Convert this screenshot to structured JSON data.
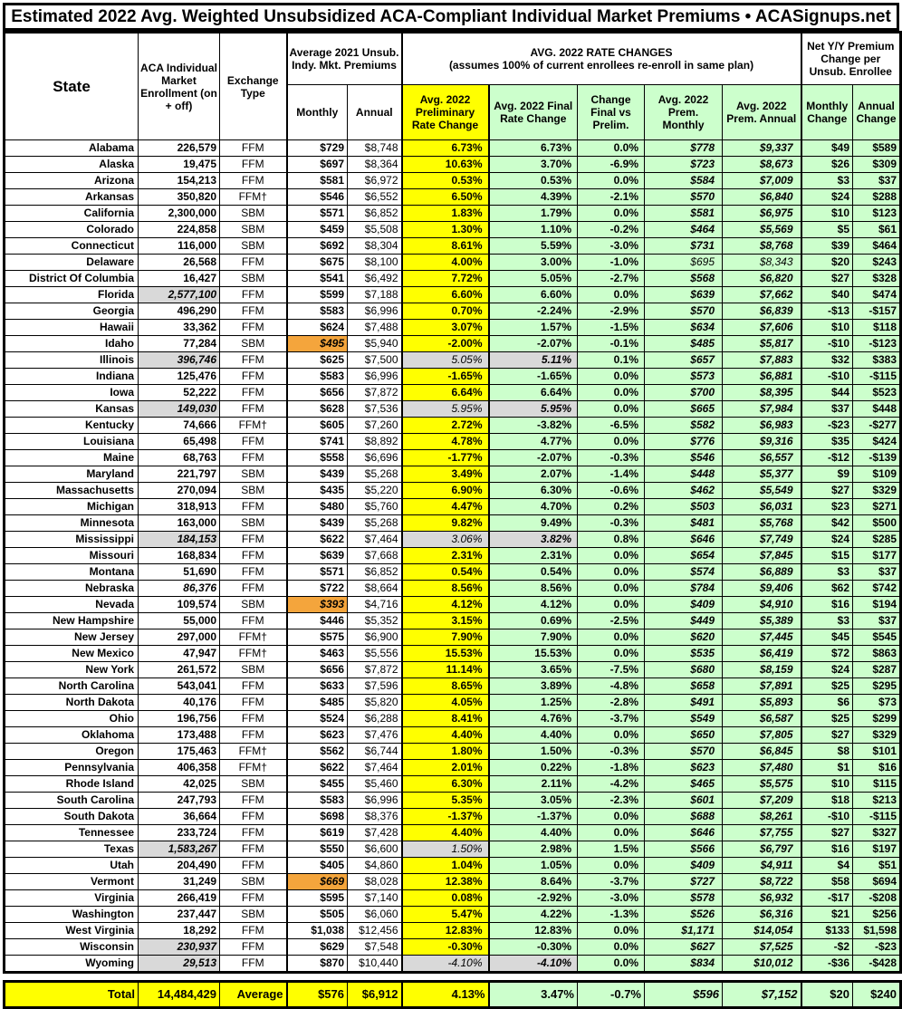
{
  "title": "Estimated 2022 Avg. Weighted Unsubsidized ACA-Compliant Individual Market Premiums • ACASignups.net",
  "colors": {
    "preliminary_highlight_yellow": "#FFFF00",
    "final_highlight_green": "#CCFFCC",
    "estimate_gray": "#D9D9D9",
    "lowest_premium_orange": "#F4A53C",
    "border_black": "#000000"
  },
  "header": {
    "state": "State",
    "enrollment": "ACA Individual Market Enrollment (on + off)",
    "exchange": "Exchange Type",
    "avg2021_group": "Average 2021 Unsub. Indy. Mkt. Premiums",
    "monthly": "Monthly",
    "annual": "Annual",
    "rate_group_line1": "AVG. 2022 RATE CHANGES",
    "rate_group_line2": "(assumes 100% of current enrollees re-enroll in same plan)",
    "prelim": "Avg. 2022 Preliminary Rate Change",
    "final": "Avg. 2022 Final Rate Change",
    "change_vs": "Change Final vs Prelim.",
    "prem_monthly": "Avg. 2022 Prem. Monthly",
    "prem_annual": "Avg. 2022 Prem. Annual",
    "net_group": "Net Y/Y Premium Change per Unsub. Enrollee",
    "monthly_change": "Monthly Change",
    "annual_change": "Annual Change"
  },
  "chart_data": {
    "type": "table",
    "title": "Estimated 2022 Avg. Weighted Unsubsidized ACA-Compliant Individual Market Premiums • ACASignups.net",
    "columns": [
      "State",
      "ACA Individual Market Enrollment (on + off)",
      "Exchange Type",
      "Average 2021 Unsub. Indy. Mkt. Premiums Monthly",
      "Average 2021 Unsub. Indy. Mkt. Premiums Annual",
      "Avg. 2022 Preliminary Rate Change",
      "Avg. 2022 Final Rate Change",
      "Change Final vs Prelim.",
      "Avg. 2022 Prem. Monthly",
      "Avg. 2022 Prem. Annual",
      "Monthly Change",
      "Annual Change"
    ],
    "flag_legend": {
      "enroll-est": "enrollment cell gray/italic (estimate)",
      "enroll-italic": "enrollment cell italic",
      "m21-orange": "2021 monthly premium cell orange/italic (lowest)",
      "prelim-est": "preliminary rate cell gray/italic (estimate)",
      "final-est": "final rate cell gray/italic (estimate)",
      "prem-light": "2022 premium cells non-bold italic"
    },
    "rows": [
      {
        "cells": [
          "Alabama",
          "226,579",
          "FFM",
          "$729",
          "$8,748",
          "6.73%",
          "6.73%",
          "0.0%",
          "$778",
          "$9,337",
          "$49",
          "$589"
        ],
        "flags": []
      },
      {
        "cells": [
          "Alaska",
          "19,475",
          "FFM",
          "$697",
          "$8,364",
          "10.63%",
          "3.70%",
          "-6.9%",
          "$723",
          "$8,673",
          "$26",
          "$309"
        ],
        "flags": []
      },
      {
        "cells": [
          "Arizona",
          "154,213",
          "FFM",
          "$581",
          "$6,972",
          "0.53%",
          "0.53%",
          "0.0%",
          "$584",
          "$7,009",
          "$3",
          "$37"
        ],
        "flags": []
      },
      {
        "cells": [
          "Arkansas",
          "350,820",
          "FFM†",
          "$546",
          "$6,552",
          "6.50%",
          "4.39%",
          "-2.1%",
          "$570",
          "$6,840",
          "$24",
          "$288"
        ],
        "flags": []
      },
      {
        "cells": [
          "California",
          "2,300,000",
          "SBM",
          "$571",
          "$6,852",
          "1.83%",
          "1.79%",
          "0.0%",
          "$581",
          "$6,975",
          "$10",
          "$123"
        ],
        "flags": []
      },
      {
        "cells": [
          "Colorado",
          "224,858",
          "SBM",
          "$459",
          "$5,508",
          "1.30%",
          "1.10%",
          "-0.2%",
          "$464",
          "$5,569",
          "$5",
          "$61"
        ],
        "flags": []
      },
      {
        "cells": [
          "Connecticut",
          "116,000",
          "SBM",
          "$692",
          "$8,304",
          "8.61%",
          "5.59%",
          "-3.0%",
          "$731",
          "$8,768",
          "$39",
          "$464"
        ],
        "flags": []
      },
      {
        "cells": [
          "Delaware",
          "26,568",
          "FFM",
          "$675",
          "$8,100",
          "4.00%",
          "3.00%",
          "-1.0%",
          "$695",
          "$8,343",
          "$20",
          "$243"
        ],
        "flags": [
          "prem-light"
        ]
      },
      {
        "cells": [
          "District Of Columbia",
          "16,427",
          "SBM",
          "$541",
          "$6,492",
          "7.72%",
          "5.05%",
          "-2.7%",
          "$568",
          "$6,820",
          "$27",
          "$328"
        ],
        "flags": []
      },
      {
        "cells": [
          "Florida",
          "2,577,100",
          "FFM",
          "$599",
          "$7,188",
          "6.60%",
          "6.60%",
          "0.0%",
          "$639",
          "$7,662",
          "$40",
          "$474"
        ],
        "flags": [
          "enroll-est"
        ]
      },
      {
        "cells": [
          "Georgia",
          "496,290",
          "FFM",
          "$583",
          "$6,996",
          "0.70%",
          "-2.24%",
          "-2.9%",
          "$570",
          "$6,839",
          "-$13",
          "-$157"
        ],
        "flags": []
      },
      {
        "cells": [
          "Hawaii",
          "33,362",
          "FFM",
          "$624",
          "$7,488",
          "3.07%",
          "1.57%",
          "-1.5%",
          "$634",
          "$7,606",
          "$10",
          "$118"
        ],
        "flags": []
      },
      {
        "cells": [
          "Idaho",
          "77,284",
          "SBM",
          "$495",
          "$5,940",
          "-2.00%",
          "-2.07%",
          "-0.1%",
          "$485",
          "$5,817",
          "-$10",
          "-$123"
        ],
        "flags": [
          "m21-orange"
        ]
      },
      {
        "cells": [
          "Illinois",
          "396,746",
          "FFM",
          "$625",
          "$7,500",
          "5.05%",
          "5.11%",
          "0.1%",
          "$657",
          "$7,883",
          "$32",
          "$383"
        ],
        "flags": [
          "enroll-est",
          "prelim-est",
          "final-est"
        ]
      },
      {
        "cells": [
          "Indiana",
          "125,476",
          "FFM",
          "$583",
          "$6,996",
          "-1.65%",
          "-1.65%",
          "0.0%",
          "$573",
          "$6,881",
          "-$10",
          "-$115"
        ],
        "flags": []
      },
      {
        "cells": [
          "Iowa",
          "52,222",
          "FFM",
          "$656",
          "$7,872",
          "6.64%",
          "6.64%",
          "0.0%",
          "$700",
          "$8,395",
          "$44",
          "$523"
        ],
        "flags": []
      },
      {
        "cells": [
          "Kansas",
          "149,030",
          "FFM",
          "$628",
          "$7,536",
          "5.95%",
          "5.95%",
          "0.0%",
          "$665",
          "$7,984",
          "$37",
          "$448"
        ],
        "flags": [
          "enroll-est",
          "prelim-est",
          "final-est"
        ]
      },
      {
        "cells": [
          "Kentucky",
          "74,666",
          "FFM†",
          "$605",
          "$7,260",
          "2.72%",
          "-3.82%",
          "-6.5%",
          "$582",
          "$6,983",
          "-$23",
          "-$277"
        ],
        "flags": []
      },
      {
        "cells": [
          "Louisiana",
          "65,498",
          "FFM",
          "$741",
          "$8,892",
          "4.78%",
          "4.77%",
          "0.0%",
          "$776",
          "$9,316",
          "$35",
          "$424"
        ],
        "flags": []
      },
      {
        "cells": [
          "Maine",
          "68,763",
          "FFM",
          "$558",
          "$6,696",
          "-1.77%",
          "-2.07%",
          "-0.3%",
          "$546",
          "$6,557",
          "-$12",
          "-$139"
        ],
        "flags": []
      },
      {
        "cells": [
          "Maryland",
          "221,797",
          "SBM",
          "$439",
          "$5,268",
          "3.49%",
          "2.07%",
          "-1.4%",
          "$448",
          "$5,377",
          "$9",
          "$109"
        ],
        "flags": []
      },
      {
        "cells": [
          "Massachusetts",
          "270,094",
          "SBM",
          "$435",
          "$5,220",
          "6.90%",
          "6.30%",
          "-0.6%",
          "$462",
          "$5,549",
          "$27",
          "$329"
        ],
        "flags": []
      },
      {
        "cells": [
          "Michigan",
          "318,913",
          "FFM",
          "$480",
          "$5,760",
          "4.47%",
          "4.70%",
          "0.2%",
          "$503",
          "$6,031",
          "$23",
          "$271"
        ],
        "flags": []
      },
      {
        "cells": [
          "Minnesota",
          "163,000",
          "SBM",
          "$439",
          "$5,268",
          "9.82%",
          "9.49%",
          "-0.3%",
          "$481",
          "$5,768",
          "$42",
          "$500"
        ],
        "flags": []
      },
      {
        "cells": [
          "Mississippi",
          "184,153",
          "FFM",
          "$622",
          "$7,464",
          "3.06%",
          "3.82%",
          "0.8%",
          "$646",
          "$7,749",
          "$24",
          "$285"
        ],
        "flags": [
          "enroll-est",
          "prelim-est",
          "final-est"
        ]
      },
      {
        "cells": [
          "Missouri",
          "168,834",
          "FFM",
          "$639",
          "$7,668",
          "2.31%",
          "2.31%",
          "0.0%",
          "$654",
          "$7,845",
          "$15",
          "$177"
        ],
        "flags": []
      },
      {
        "cells": [
          "Montana",
          "51,690",
          "FFM",
          "$571",
          "$6,852",
          "0.54%",
          "0.54%",
          "0.0%",
          "$574",
          "$6,889",
          "$3",
          "$37"
        ],
        "flags": []
      },
      {
        "cells": [
          "Nebraska",
          "86,376",
          "FFM",
          "$722",
          "$8,664",
          "8.56%",
          "8.56%",
          "0.0%",
          "$784",
          "$9,406",
          "$62",
          "$742"
        ],
        "flags": [
          "enroll-italic"
        ]
      },
      {
        "cells": [
          "Nevada",
          "109,574",
          "SBM",
          "$393",
          "$4,716",
          "4.12%",
          "4.12%",
          "0.0%",
          "$409",
          "$4,910",
          "$16",
          "$194"
        ],
        "flags": [
          "m21-orange"
        ]
      },
      {
        "cells": [
          "New Hampshire",
          "55,000",
          "FFM",
          "$446",
          "$5,352",
          "3.15%",
          "0.69%",
          "-2.5%",
          "$449",
          "$5,389",
          "$3",
          "$37"
        ],
        "flags": []
      },
      {
        "cells": [
          "New Jersey",
          "297,000",
          "FFM†",
          "$575",
          "$6,900",
          "7.90%",
          "7.90%",
          "0.0%",
          "$620",
          "$7,445",
          "$45",
          "$545"
        ],
        "flags": []
      },
      {
        "cells": [
          "New Mexico",
          "47,947",
          "FFM†",
          "$463",
          "$5,556",
          "15.53%",
          "15.53%",
          "0.0%",
          "$535",
          "$6,419",
          "$72",
          "$863"
        ],
        "flags": []
      },
      {
        "cells": [
          "New York",
          "261,572",
          "SBM",
          "$656",
          "$7,872",
          "11.14%",
          "3.65%",
          "-7.5%",
          "$680",
          "$8,159",
          "$24",
          "$287"
        ],
        "flags": []
      },
      {
        "cells": [
          "North Carolina",
          "543,041",
          "FFM",
          "$633",
          "$7,596",
          "8.65%",
          "3.89%",
          "-4.8%",
          "$658",
          "$7,891",
          "$25",
          "$295"
        ],
        "flags": []
      },
      {
        "cells": [
          "North Dakota",
          "40,176",
          "FFM",
          "$485",
          "$5,820",
          "4.05%",
          "1.25%",
          "-2.8%",
          "$491",
          "$5,893",
          "$6",
          "$73"
        ],
        "flags": []
      },
      {
        "cells": [
          "Ohio",
          "196,756",
          "FFM",
          "$524",
          "$6,288",
          "8.41%",
          "4.76%",
          "-3.7%",
          "$549",
          "$6,587",
          "$25",
          "$299"
        ],
        "flags": []
      },
      {
        "cells": [
          "Oklahoma",
          "173,488",
          "FFM",
          "$623",
          "$7,476",
          "4.40%",
          "4.40%",
          "0.0%",
          "$650",
          "$7,805",
          "$27",
          "$329"
        ],
        "flags": []
      },
      {
        "cells": [
          "Oregon",
          "175,463",
          "FFM†",
          "$562",
          "$6,744",
          "1.80%",
          "1.50%",
          "-0.3%",
          "$570",
          "$6,845",
          "$8",
          "$101"
        ],
        "flags": []
      },
      {
        "cells": [
          "Pennsylvania",
          "406,358",
          "FFM†",
          "$622",
          "$7,464",
          "2.01%",
          "0.22%",
          "-1.8%",
          "$623",
          "$7,480",
          "$1",
          "$16"
        ],
        "flags": []
      },
      {
        "cells": [
          "Rhode Island",
          "42,025",
          "SBM",
          "$455",
          "$5,460",
          "6.30%",
          "2.11%",
          "-4.2%",
          "$465",
          "$5,575",
          "$10",
          "$115"
        ],
        "flags": []
      },
      {
        "cells": [
          "South Carolina",
          "247,793",
          "FFM",
          "$583",
          "$6,996",
          "5.35%",
          "3.05%",
          "-2.3%",
          "$601",
          "$7,209",
          "$18",
          "$213"
        ],
        "flags": []
      },
      {
        "cells": [
          "South Dakota",
          "36,664",
          "FFM",
          "$698",
          "$8,376",
          "-1.37%",
          "-1.37%",
          "0.0%",
          "$688",
          "$8,261",
          "-$10",
          "-$115"
        ],
        "flags": []
      },
      {
        "cells": [
          "Tennessee",
          "233,724",
          "FFM",
          "$619",
          "$7,428",
          "4.40%",
          "4.40%",
          "0.0%",
          "$646",
          "$7,755",
          "$27",
          "$327"
        ],
        "flags": []
      },
      {
        "cells": [
          "Texas",
          "1,583,267",
          "FFM",
          "$550",
          "$6,600",
          "1.50%",
          "2.98%",
          "1.5%",
          "$566",
          "$6,797",
          "$16",
          "$197"
        ],
        "flags": [
          "enroll-est",
          "prelim-est"
        ]
      },
      {
        "cells": [
          "Utah",
          "204,490",
          "FFM",
          "$405",
          "$4,860",
          "1.04%",
          "1.05%",
          "0.0%",
          "$409",
          "$4,911",
          "$4",
          "$51"
        ],
        "flags": []
      },
      {
        "cells": [
          "Vermont",
          "31,249",
          "SBM",
          "$669",
          "$8,028",
          "12.38%",
          "8.64%",
          "-3.7%",
          "$727",
          "$8,722",
          "$58",
          "$694"
        ],
        "flags": [
          "m21-orange"
        ]
      },
      {
        "cells": [
          "Virginia",
          "266,419",
          "FFM",
          "$595",
          "$7,140",
          "0.08%",
          "-2.92%",
          "-3.0%",
          "$578",
          "$6,932",
          "-$17",
          "-$208"
        ],
        "flags": []
      },
      {
        "cells": [
          "Washington",
          "237,447",
          "SBM",
          "$505",
          "$6,060",
          "5.47%",
          "4.22%",
          "-1.3%",
          "$526",
          "$6,316",
          "$21",
          "$256"
        ],
        "flags": []
      },
      {
        "cells": [
          "West Virginia",
          "18,292",
          "FFM",
          "$1,038",
          "$12,456",
          "12.83%",
          "12.83%",
          "0.0%",
          "$1,171",
          "$14,054",
          "$133",
          "$1,598"
        ],
        "flags": []
      },
      {
        "cells": [
          "Wisconsin",
          "230,937",
          "FFM",
          "$629",
          "$7,548",
          "-0.30%",
          "-0.30%",
          "0.0%",
          "$627",
          "$7,525",
          "-$2",
          "-$23"
        ],
        "flags": [
          "enroll-est"
        ]
      },
      {
        "cells": [
          "Wyoming",
          "29,513",
          "FFM",
          "$870",
          "$10,440",
          "-4.10%",
          "-4.10%",
          "0.0%",
          "$834",
          "$10,012",
          "-$36",
          "-$428"
        ],
        "flags": [
          "enroll-est",
          "prelim-est",
          "final-est"
        ]
      }
    ],
    "total": {
      "cells": [
        "Total",
        "14,484,429",
        "Average",
        "$576",
        "$6,912",
        "4.13%",
        "3.47%",
        "-0.7%",
        "$596",
        "$7,152",
        "$20",
        "$240"
      ]
    }
  }
}
